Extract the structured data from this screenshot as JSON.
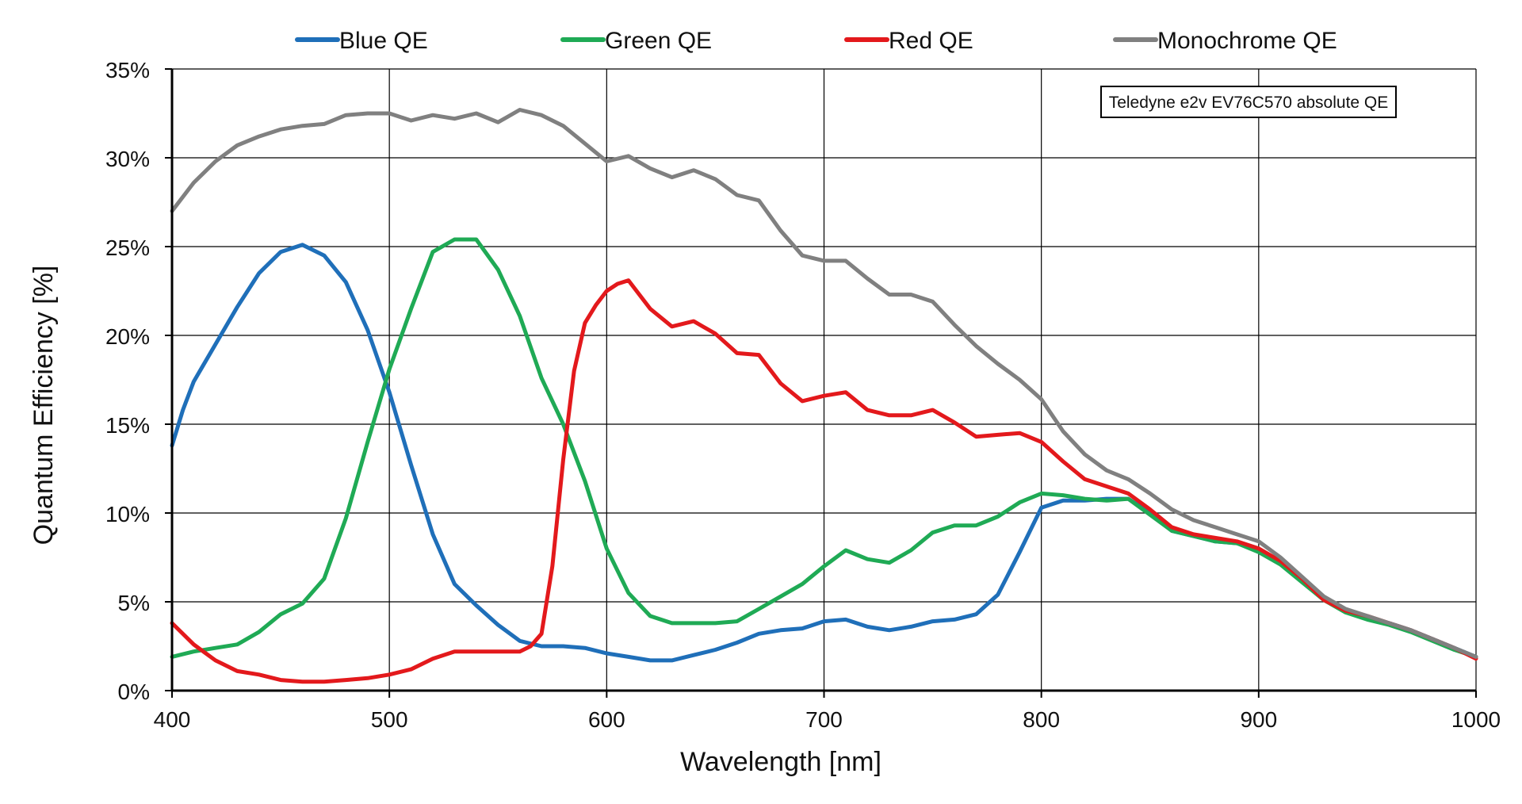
{
  "chart_data": {
    "type": "line",
    "xlabel": "Wavelength [nm]",
    "ylabel": "Quantum Efficiency [%]",
    "xlim": [
      400,
      1000
    ],
    "ylim": [
      0,
      35
    ],
    "xticks": [
      400,
      500,
      600,
      700,
      800,
      900,
      1000
    ],
    "yticks": [
      0,
      5,
      10,
      15,
      20,
      25,
      30,
      35
    ],
    "ytick_suffix": "%",
    "grid": true,
    "legend_position": "top",
    "annotation": "Teledyne e2v EV76C570 absolute QE",
    "series": [
      {
        "name": "Blue QE",
        "color": "#1f6fb9",
        "x": [
          400,
          405,
          410,
          420,
          430,
          440,
          450,
          460,
          470,
          480,
          490,
          500,
          510,
          520,
          530,
          540,
          550,
          560,
          570,
          580,
          590,
          600,
          610,
          620,
          630,
          640,
          650,
          660,
          670,
          680,
          690,
          700,
          710,
          720,
          730,
          740,
          750,
          760,
          770,
          780,
          790,
          800,
          810,
          820,
          830,
          840,
          850,
          860,
          870,
          880,
          890,
          900,
          910,
          920,
          930,
          940,
          950,
          960,
          970,
          980,
          990,
          1000
        ],
        "y": [
          13.8,
          15.8,
          17.4,
          19.5,
          21.6,
          23.5,
          24.7,
          25.1,
          24.5,
          23.0,
          20.3,
          16.8,
          12.7,
          8.8,
          6.0,
          4.8,
          3.7,
          2.8,
          2.5,
          2.5,
          2.4,
          2.1,
          1.9,
          1.7,
          1.7,
          2.0,
          2.3,
          2.7,
          3.2,
          3.4,
          3.5,
          3.9,
          4.0,
          3.6,
          3.4,
          3.6,
          3.9,
          4.0,
          4.3,
          5.4,
          7.8,
          10.3,
          10.7,
          10.7,
          10.8,
          10.8,
          10.0,
          9.0,
          8.7,
          8.4,
          8.3,
          7.9,
          7.2,
          6.2,
          5.2,
          4.5,
          4.1,
          3.8,
          3.4,
          2.9,
          2.4,
          1.9
        ]
      },
      {
        "name": "Green QE",
        "color": "#1faa55",
        "x": [
          400,
          410,
          420,
          430,
          440,
          450,
          460,
          470,
          480,
          490,
          500,
          510,
          520,
          530,
          540,
          550,
          560,
          570,
          580,
          590,
          600,
          610,
          620,
          630,
          640,
          650,
          660,
          670,
          680,
          690,
          700,
          710,
          720,
          730,
          740,
          750,
          760,
          770,
          780,
          790,
          800,
          810,
          820,
          830,
          840,
          850,
          860,
          870,
          880,
          890,
          900,
          910,
          920,
          930,
          940,
          950,
          960,
          970,
          980,
          990,
          1000
        ],
        "y": [
          1.9,
          2.2,
          2.4,
          2.6,
          3.3,
          4.3,
          4.9,
          6.3,
          9.7,
          14.0,
          18.1,
          21.5,
          24.7,
          25.4,
          25.4,
          23.7,
          21.1,
          17.6,
          15.0,
          11.8,
          8.0,
          5.5,
          4.2,
          3.8,
          3.8,
          3.8,
          3.9,
          4.6,
          5.3,
          6.0,
          7.0,
          7.9,
          7.4,
          7.2,
          7.9,
          8.9,
          9.3,
          9.3,
          9.8,
          10.6,
          11.1,
          11.0,
          10.8,
          10.7,
          10.8,
          9.9,
          9.0,
          8.7,
          8.4,
          8.3,
          7.8,
          7.1,
          6.1,
          5.1,
          4.4,
          4.0,
          3.7,
          3.3,
          2.8,
          2.3,
          1.9
        ]
      },
      {
        "name": "Red QE",
        "color": "#e3191c",
        "x": [
          400,
          410,
          420,
          430,
          440,
          450,
          460,
          470,
          480,
          490,
          500,
          510,
          520,
          530,
          540,
          550,
          560,
          565,
          570,
          575,
          580,
          585,
          590,
          595,
          600,
          605,
          610,
          620,
          630,
          640,
          650,
          660,
          670,
          680,
          690,
          700,
          710,
          720,
          730,
          740,
          750,
          760,
          770,
          780,
          790,
          800,
          810,
          820,
          830,
          840,
          850,
          860,
          870,
          880,
          890,
          900,
          910,
          920,
          930,
          940,
          950,
          960,
          970,
          980,
          990,
          1000
        ],
        "y": [
          3.8,
          2.6,
          1.7,
          1.1,
          0.9,
          0.6,
          0.5,
          0.5,
          0.6,
          0.7,
          0.9,
          1.2,
          1.8,
          2.2,
          2.2,
          2.2,
          2.2,
          2.5,
          3.2,
          7.0,
          13.0,
          18.0,
          20.7,
          21.7,
          22.5,
          22.9,
          23.1,
          21.5,
          20.5,
          20.8,
          20.1,
          19.0,
          18.9,
          17.3,
          16.3,
          16.6,
          16.8,
          15.8,
          15.5,
          15.5,
          15.8,
          15.1,
          14.3,
          14.4,
          14.5,
          14.0,
          12.9,
          11.9,
          11.5,
          11.1,
          10.2,
          9.2,
          8.8,
          8.6,
          8.4,
          8.0,
          7.3,
          6.3,
          5.1,
          4.5,
          4.2,
          3.8,
          3.4,
          2.9,
          2.4,
          1.8
        ]
      },
      {
        "name": "Monochrome QE",
        "color": "#808080",
        "x": [
          400,
          410,
          420,
          430,
          440,
          450,
          460,
          470,
          480,
          490,
          500,
          510,
          520,
          530,
          540,
          550,
          560,
          570,
          580,
          590,
          600,
          610,
          620,
          630,
          640,
          650,
          660,
          670,
          680,
          690,
          700,
          710,
          720,
          730,
          740,
          750,
          760,
          770,
          780,
          790,
          800,
          810,
          820,
          830,
          840,
          850,
          860,
          870,
          880,
          890,
          900,
          910,
          920,
          930,
          940,
          950,
          960,
          970,
          980,
          990,
          1000
        ],
        "y": [
          27.0,
          28.6,
          29.8,
          30.7,
          31.2,
          31.6,
          31.8,
          31.9,
          32.4,
          32.5,
          32.5,
          32.1,
          32.4,
          32.2,
          32.5,
          32.0,
          32.7,
          32.4,
          31.8,
          30.8,
          29.8,
          30.1,
          29.4,
          28.9,
          29.3,
          28.8,
          27.9,
          27.6,
          25.9,
          24.5,
          24.2,
          24.2,
          23.2,
          22.3,
          22.3,
          21.9,
          20.6,
          19.4,
          18.4,
          17.5,
          16.4,
          14.6,
          13.3,
          12.4,
          11.9,
          11.1,
          10.2,
          9.6,
          9.2,
          8.8,
          8.4,
          7.5,
          6.4,
          5.3,
          4.6,
          4.2,
          3.8,
          3.4,
          2.9,
          2.4,
          1.9
        ]
      }
    ]
  }
}
